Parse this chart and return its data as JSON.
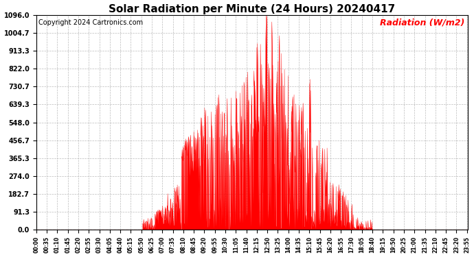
{
  "title": "Solar Radiation per Minute (24 Hours) 20240417",
  "copyright_text": "Copyright 2024 Cartronics.com",
  "ylabel": "Radiation (W/m2)",
  "yticks": [
    0.0,
    91.3,
    182.7,
    274.0,
    365.3,
    456.7,
    548.0,
    639.3,
    730.7,
    822.0,
    913.3,
    1004.7,
    1096.0
  ],
  "ymax": 1096.0,
  "ymin": 0.0,
  "fill_color": "#ff0000",
  "line_color": "#ff0000",
  "baseline_color": "#ff0000",
  "background_color": "#ffffff",
  "grid_color": "#aaaaaa",
  "title_fontsize": 11,
  "copyright_fontsize": 7,
  "ylabel_color": "#ff0000",
  "ylabel_fontsize": 9,
  "xtick_interval_minutes": 35,
  "total_minutes": 1440
}
